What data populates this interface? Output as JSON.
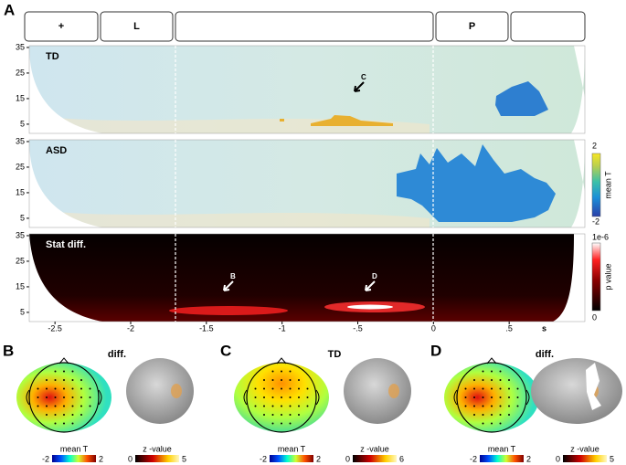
{
  "panel_a": {
    "label": "A",
    "header_labels": [
      "+",
      "L",
      "P"
    ],
    "rows": [
      {
        "title": "TD",
        "arrow_labels": [
          "C"
        ]
      },
      {
        "title": "ASD"
      },
      {
        "title": "Stat diff.",
        "arrow_labels": [
          "B",
          "D"
        ]
      }
    ],
    "ylim": [
      1.4,
      35.7
    ],
    "yticks": [
      35,
      25,
      15,
      5
    ],
    "xlim": [
      -2.67,
      1.0
    ],
    "xticks": [
      -2.5,
      -2,
      -1.5,
      -1,
      {
        "value": -0.5,
        "label": "-.5"
      },
      0,
      {
        "value": 0.5,
        "label": ".5"
      }
    ],
    "x_unit": "s",
    "colorbars": [
      {
        "label": "mean T",
        "max": 2,
        "min": -2
      },
      {
        "label": "p value",
        "max": {
          "value": 1e-06,
          "label": "1e-6"
        },
        "min": 0
      }
    ]
  },
  "panels": [
    {
      "label": "B",
      "title": "diff.",
      "colorbars": [
        {
          "label": "mean T",
          "min": -2,
          "max": 2
        },
        {
          "label": "z -value",
          "min": 0,
          "max": 5
        }
      ]
    },
    {
      "label": "C",
      "title": "TD",
      "colorbars": [
        {
          "label": "mean T",
          "min": -2,
          "max": 2
        },
        {
          "label": "z -value",
          "min": 0,
          "max": 6
        }
      ]
    },
    {
      "label": "D",
      "title": "diff.",
      "colorbars": [
        {
          "label": "mean T",
          "min": -2,
          "max": 2
        },
        {
          "label": "z -value",
          "min": 0,
          "max": 5
        }
      ]
    }
  ]
}
